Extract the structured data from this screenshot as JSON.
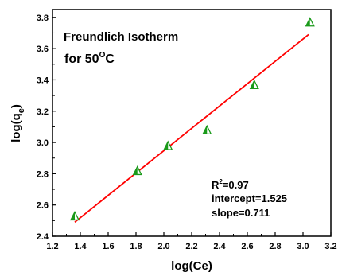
{
  "chart_data": {
    "type": "scatter",
    "xlabel": "log(Ce)",
    "ylabel_main": "log(q",
    "ylabel_sub": "e",
    "ylabel_close": ")",
    "xlim": [
      1.2,
      3.2
    ],
    "ylim": [
      2.4,
      3.85
    ],
    "xticks": [
      "1.2",
      "1.4",
      "1.6",
      "1.8",
      "2.0",
      "2.2",
      "2.4",
      "2.6",
      "2.8",
      "3.0",
      "3.2"
    ],
    "yticks": [
      "2.4",
      "2.6",
      "2.8",
      "3.0",
      "3.2",
      "3.4",
      "3.6",
      "3.8"
    ],
    "series": [
      {
        "x": [
          1.36,
          1.81,
          2.03,
          2.31,
          2.65,
          3.05
        ],
        "y": [
          2.53,
          2.82,
          2.98,
          3.08,
          3.37,
          3.77
        ],
        "marker": "half-filled-triangle",
        "color": "#1a9a1a"
      }
    ],
    "fit_line": {
      "x": [
        1.36,
        3.04
      ],
      "y": [
        2.49,
        3.69
      ],
      "color": "#ff0000"
    },
    "annotations": {
      "title_line1": "Freundlich Isotherm",
      "title_line2_main": "for 50",
      "title_line2_sup": "O",
      "title_line2_end": "C",
      "r2_main": "R",
      "r2_sup": "2",
      "r2_value": "=0.97",
      "intercept": "intercept=1.525",
      "slope": "slope=0.711"
    }
  }
}
